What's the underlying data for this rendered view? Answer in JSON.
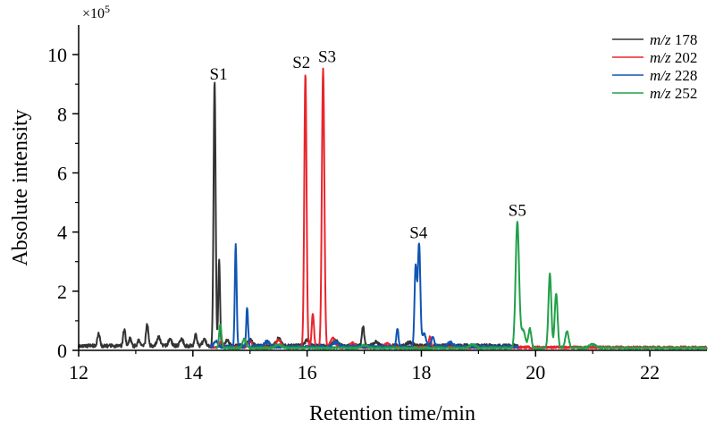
{
  "chart_data": {
    "type": "line",
    "xlabel": "Retention time/min",
    "ylabel": "Absolute intensity",
    "y_multiplier": "×10",
    "y_multiplier_exp": "5",
    "xlim": [
      12,
      23
    ],
    "ylim": [
      0,
      11
    ],
    "x_ticks": [
      12,
      14,
      16,
      18,
      20,
      22
    ],
    "y_ticks": [
      0,
      2,
      4,
      6,
      8,
      10
    ],
    "grid": false,
    "legend_position": "top-right",
    "series": [
      {
        "name_prefix": "m/z",
        "name_value": "178",
        "color": "#333333",
        "baseline": 0.15,
        "peaks": [
          [
            12.35,
            0.45,
            0.02
          ],
          [
            12.8,
            0.55,
            0.02
          ],
          [
            12.9,
            0.25,
            0.02
          ],
          [
            13.2,
            0.75,
            0.02
          ],
          [
            13.05,
            0.2,
            0.02
          ],
          [
            13.4,
            0.3,
            0.03
          ],
          [
            13.6,
            0.22,
            0.03
          ],
          [
            13.8,
            0.25,
            0.03
          ],
          [
            14.05,
            0.42,
            0.02
          ],
          [
            14.2,
            0.2,
            0.03
          ],
          [
            14.38,
            8.95,
            0.018
          ],
          [
            14.46,
            2.95,
            0.015
          ],
          [
            14.6,
            0.2,
            0.03
          ],
          [
            15.0,
            0.2,
            0.04
          ],
          [
            15.5,
            0.25,
            0.04
          ],
          [
            16.0,
            0.2,
            0.04
          ],
          [
            16.5,
            0.2,
            0.04
          ],
          [
            16.98,
            0.65,
            0.02
          ],
          [
            17.2,
            0.15,
            0.04
          ],
          [
            17.8,
            0.12,
            0.05
          ]
        ],
        "range": [
          12.0,
          19.7
        ]
      },
      {
        "name_prefix": "m/z",
        "name_value": "202",
        "color": "#e8262d",
        "baseline": 0.1,
        "peaks": [
          [
            14.5,
            0.2,
            0.03
          ],
          [
            15.0,
            0.18,
            0.04
          ],
          [
            15.5,
            0.25,
            0.04
          ],
          [
            15.97,
            9.25,
            0.02
          ],
          [
            16.1,
            1.15,
            0.02
          ],
          [
            16.28,
            9.4,
            0.022
          ],
          [
            16.45,
            0.3,
            0.04
          ],
          [
            16.8,
            0.15,
            0.05
          ],
          [
            17.4,
            0.12,
            0.05
          ],
          [
            18.15,
            0.35,
            0.02
          ]
        ],
        "range": [
          14.3,
          23.0
        ]
      },
      {
        "name_prefix": "m/z",
        "name_value": "228",
        "color": "#1155b3",
        "baseline": 0.12,
        "peaks": [
          [
            14.4,
            0.2,
            0.03
          ],
          [
            14.75,
            3.45,
            0.016
          ],
          [
            14.95,
            1.35,
            0.016
          ],
          [
            15.3,
            0.18,
            0.05
          ],
          [
            16.5,
            0.15,
            0.05
          ],
          [
            17.58,
            0.6,
            0.02
          ],
          [
            17.9,
            2.7,
            0.02
          ],
          [
            17.96,
            3.5,
            0.022
          ],
          [
            18.05,
            0.45,
            0.03
          ],
          [
            18.2,
            0.3,
            0.03
          ],
          [
            18.5,
            0.15,
            0.05
          ]
        ],
        "range": [
          14.3,
          19.7
        ]
      },
      {
        "name_prefix": "m/z",
        "name_value": "252",
        "color": "#21a04a",
        "baseline": 0.08,
        "peaks": [
          [
            14.48,
            0.8,
            0.02
          ],
          [
            14.9,
            0.3,
            0.03
          ],
          [
            15.5,
            0.12,
            0.05
          ],
          [
            17.0,
            0.1,
            0.05
          ],
          [
            18.9,
            0.12,
            0.05
          ],
          [
            19.68,
            4.25,
            0.03
          ],
          [
            19.78,
            0.6,
            0.04
          ],
          [
            19.9,
            0.65,
            0.025
          ],
          [
            20.25,
            2.5,
            0.025
          ],
          [
            20.36,
            1.85,
            0.025
          ],
          [
            20.55,
            0.55,
            0.03
          ],
          [
            21.0,
            0.12,
            0.06
          ]
        ],
        "range": [
          14.4,
          23.0
        ]
      }
    ],
    "annotations": [
      {
        "text": "S1",
        "x": 14.45,
        "y": 9.15
      },
      {
        "text": "S2",
        "x": 15.9,
        "y": 9.55
      },
      {
        "text": "S3",
        "x": 16.35,
        "y": 9.75
      },
      {
        "text": "S4",
        "x": 17.95,
        "y": 3.8
      },
      {
        "text": "S5",
        "x": 19.68,
        "y": 4.55
      }
    ]
  }
}
